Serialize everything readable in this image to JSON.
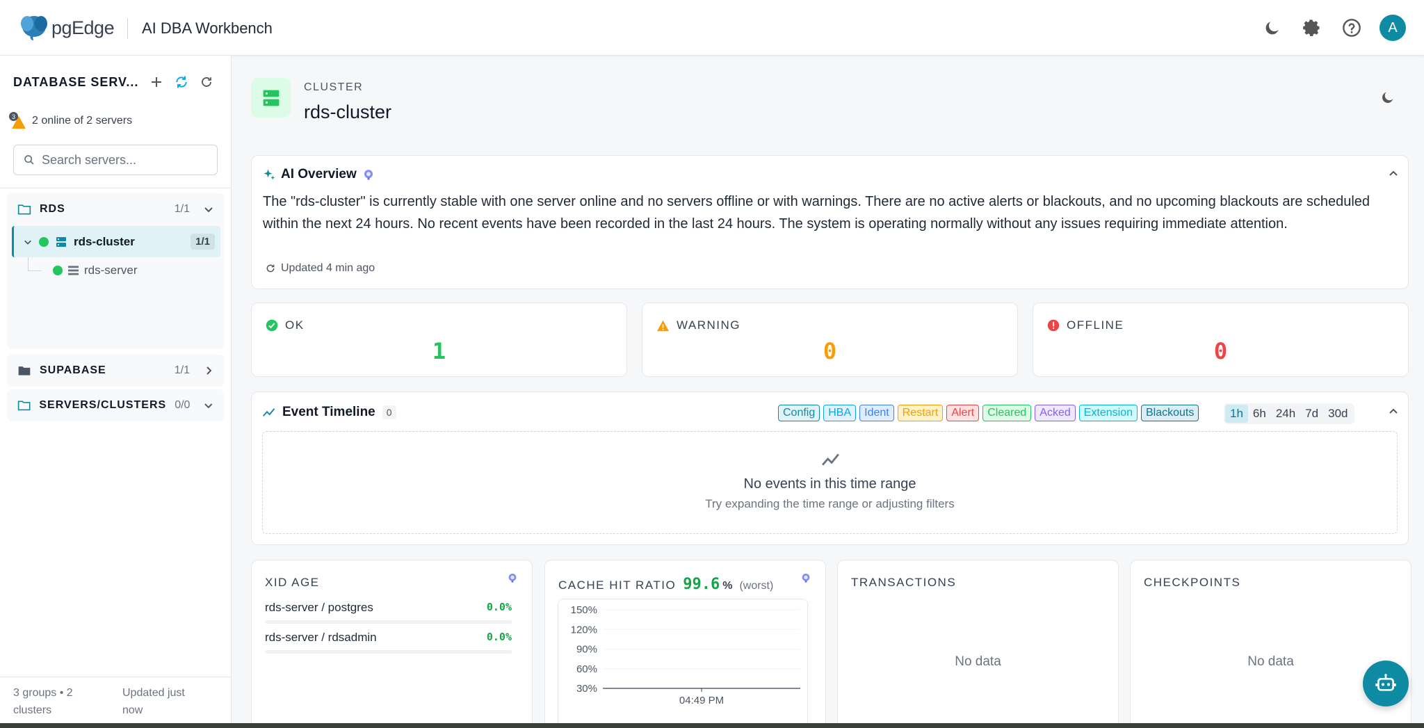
{
  "header": {
    "logo_text": "pgEdge",
    "logo_icon": "elephant-logo-icon",
    "app_title": "AI DBA Workbench",
    "icons": [
      "moon-icon",
      "gear-icon",
      "help-icon"
    ],
    "avatar_initial": "A"
  },
  "sidebar": {
    "title": "DATABASE SERV...",
    "alert_badge_count": "3",
    "status_text": "2 online of 2 servers",
    "search_placeholder": "Search servers...",
    "groups": [
      {
        "name": "RDS",
        "count": "1/1",
        "expanded": true
      },
      {
        "name": "SUPABASE",
        "count": "1/1",
        "expanded": false
      },
      {
        "name": "SERVERS/CLUSTERS",
        "count": "0/0",
        "expanded": true
      }
    ],
    "cluster": {
      "name": "rds-cluster",
      "badge": "1/1"
    },
    "server": {
      "name": "rds-server"
    },
    "footer_left": "3 groups • 2 clusters",
    "footer_right": "Updated just now"
  },
  "main": {
    "kind": "CLUSTER",
    "title": "rds-cluster",
    "ai_overview": {
      "title": "AI Overview",
      "text": "The \"rds-cluster\" is currently stable with one server online and no servers offline or with warnings. There are no active alerts or blackouts, and no upcoming blackouts are scheduled within the next 24 hours. No recent events have been recorded in the last 24 hours. The system is operating normally without any issues requiring immediate attention.",
      "updated": "Updated 4 min ago"
    },
    "stats": [
      {
        "label": "OK",
        "value": "1",
        "color": "#22c55e"
      },
      {
        "label": "WARNING",
        "value": "0",
        "color": "#f59e0b"
      },
      {
        "label": "OFFLINE",
        "value": "0",
        "color": "#ef4444"
      }
    ],
    "timeline": {
      "title": "Event Timeline",
      "count": "0",
      "chips": [
        {
          "label": "Config",
          "color": "#0e8ba3",
          "bg": "#e0f4f8"
        },
        {
          "label": "HBA",
          "color": "#0ea5e9",
          "bg": "#e0f2fe"
        },
        {
          "label": "Ident",
          "color": "#3b82f6",
          "bg": "#e0ecff"
        },
        {
          "label": "Restart",
          "color": "#f59e0b",
          "bg": "#fef3c7"
        },
        {
          "label": "Alert",
          "color": "#ef4444",
          "bg": "#fee2e2"
        },
        {
          "label": "Cleared",
          "color": "#22c55e",
          "bg": "#dcfce7"
        },
        {
          "label": "Acked",
          "color": "#8b5cf6",
          "bg": "#ede9fe"
        },
        {
          "label": "Extension",
          "color": "#06b6d4",
          "bg": "#cffafe"
        },
        {
          "label": "Blackouts",
          "color": "#0e7490",
          "bg": "#dbeef5"
        }
      ],
      "ranges": [
        "1h",
        "6h",
        "24h",
        "7d",
        "30d"
      ],
      "active_range": "1h",
      "empty_title": "No events in this time range",
      "empty_hint": "Try expanding the time range or adjusting filters"
    },
    "metrics": {
      "xid": {
        "title": "XID AGE",
        "rows": [
          {
            "label": "rds-server / postgres",
            "value": "0.0%"
          },
          {
            "label": "rds-server / rdsadmin",
            "value": "0.0%"
          }
        ]
      },
      "cache": {
        "title": "CACHE HIT RATIO",
        "value": "99.6",
        "unit": "%",
        "suffix": "(worst)"
      },
      "transactions": {
        "title": "TRANSACTIONS",
        "empty": "No data"
      },
      "checkpoints": {
        "title": "CHECKPOINTS",
        "empty": "No data"
      }
    }
  },
  "chart_data": {
    "type": "line",
    "title": "CACHE HIT RATIO",
    "y_ticks": [
      "150%",
      "120%",
      "90%",
      "60%",
      "30%"
    ],
    "x_ticks": [
      "04:49 PM"
    ],
    "ylim": [
      30,
      150
    ],
    "series": [
      {
        "values": []
      }
    ]
  },
  "fab_icon": "robot-icon"
}
